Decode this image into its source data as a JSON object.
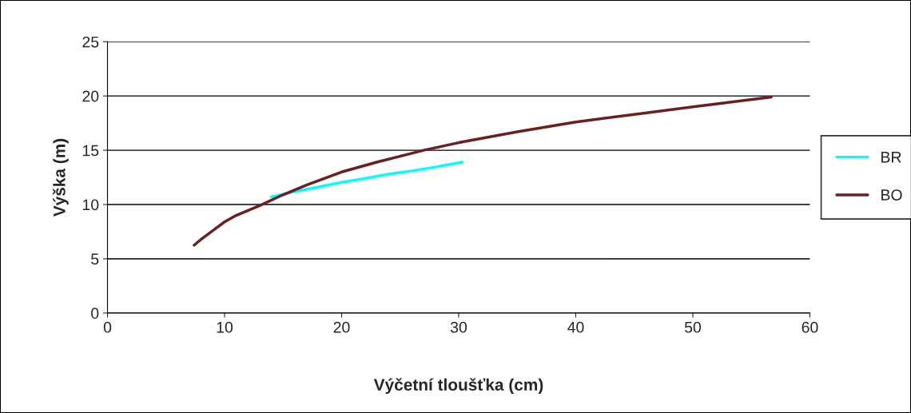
{
  "chart_data": {
    "type": "line",
    "xlabel": "Výčetní tloušťka (cm)",
    "ylabel": "Výška (m)",
    "series": [
      {
        "name": "BR",
        "color": "#00ffff",
        "x": [
          14,
          16,
          18,
          20,
          22,
          24,
          26,
          28,
          30.3
        ],
        "values": [
          10.7,
          11.2,
          11.6,
          12.05,
          12.4,
          12.8,
          13.1,
          13.45,
          13.9
        ]
      },
      {
        "name": "BO",
        "color": "#6b1f1f",
        "x": [
          7.4,
          8,
          9,
          10,
          11,
          13,
          15,
          17,
          20,
          23,
          27,
          30,
          35,
          40,
          45,
          50,
          56.7
        ],
        "values": [
          6.25,
          6.8,
          7.6,
          8.4,
          9.0,
          9.9,
          10.9,
          11.8,
          13.0,
          13.9,
          15.0,
          15.7,
          16.7,
          17.6,
          18.3,
          19.0,
          19.9
        ]
      }
    ],
    "xlim": [
      0,
      60
    ],
    "xticks": [
      0,
      10,
      20,
      30,
      40,
      50,
      60
    ],
    "ylim": [
      0,
      25
    ],
    "yticks": [
      0,
      5,
      10,
      15,
      20,
      25
    ],
    "grid": "y",
    "legend": "right",
    "marker": "none",
    "line_style": "solid"
  }
}
